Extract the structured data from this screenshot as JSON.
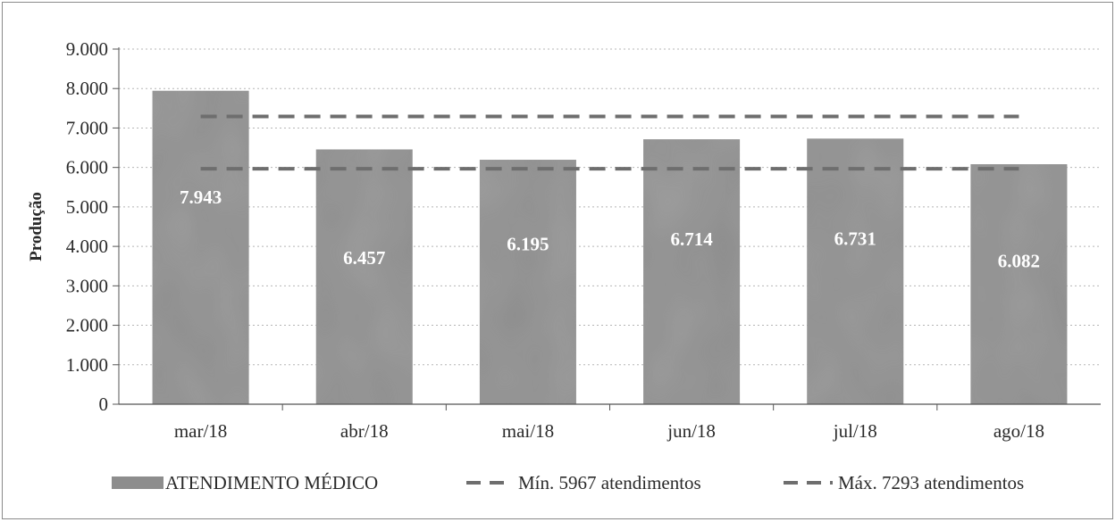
{
  "chart_data": {
    "type": "bar",
    "ylabel": "Produção",
    "ylim": [
      0,
      9000
    ],
    "ytick_step": 1000,
    "y_ticks": [
      "0",
      "1.000",
      "2.000",
      "3.000",
      "4.000",
      "5.000",
      "6.000",
      "7.000",
      "8.000",
      "9.000"
    ],
    "categories": [
      "mar/18",
      "abr/18",
      "mai/18",
      "jun/18",
      "jul/18",
      "ago/18"
    ],
    "series": [
      {
        "name": "ATENDIMENTO MÉDICO",
        "values": [
          7943,
          6457,
          6195,
          6714,
          6731,
          6082
        ],
        "value_labels": [
          "7.943",
          "6.457",
          "6.195",
          "6.714",
          "6.731",
          "6.082"
        ],
        "color": "#8d8d8d"
      }
    ],
    "reference_lines": [
      {
        "name": "Mín. 5967 atendimentos",
        "value": 5967,
        "style": "dashed",
        "color": "#6e6e6e"
      },
      {
        "name": "Máx. 7293 atendimentos",
        "value": 7293,
        "style": "dashed",
        "color": "#6e6e6e"
      }
    ],
    "grid": true,
    "grid_style": "dotted",
    "legend_position": "bottom"
  }
}
